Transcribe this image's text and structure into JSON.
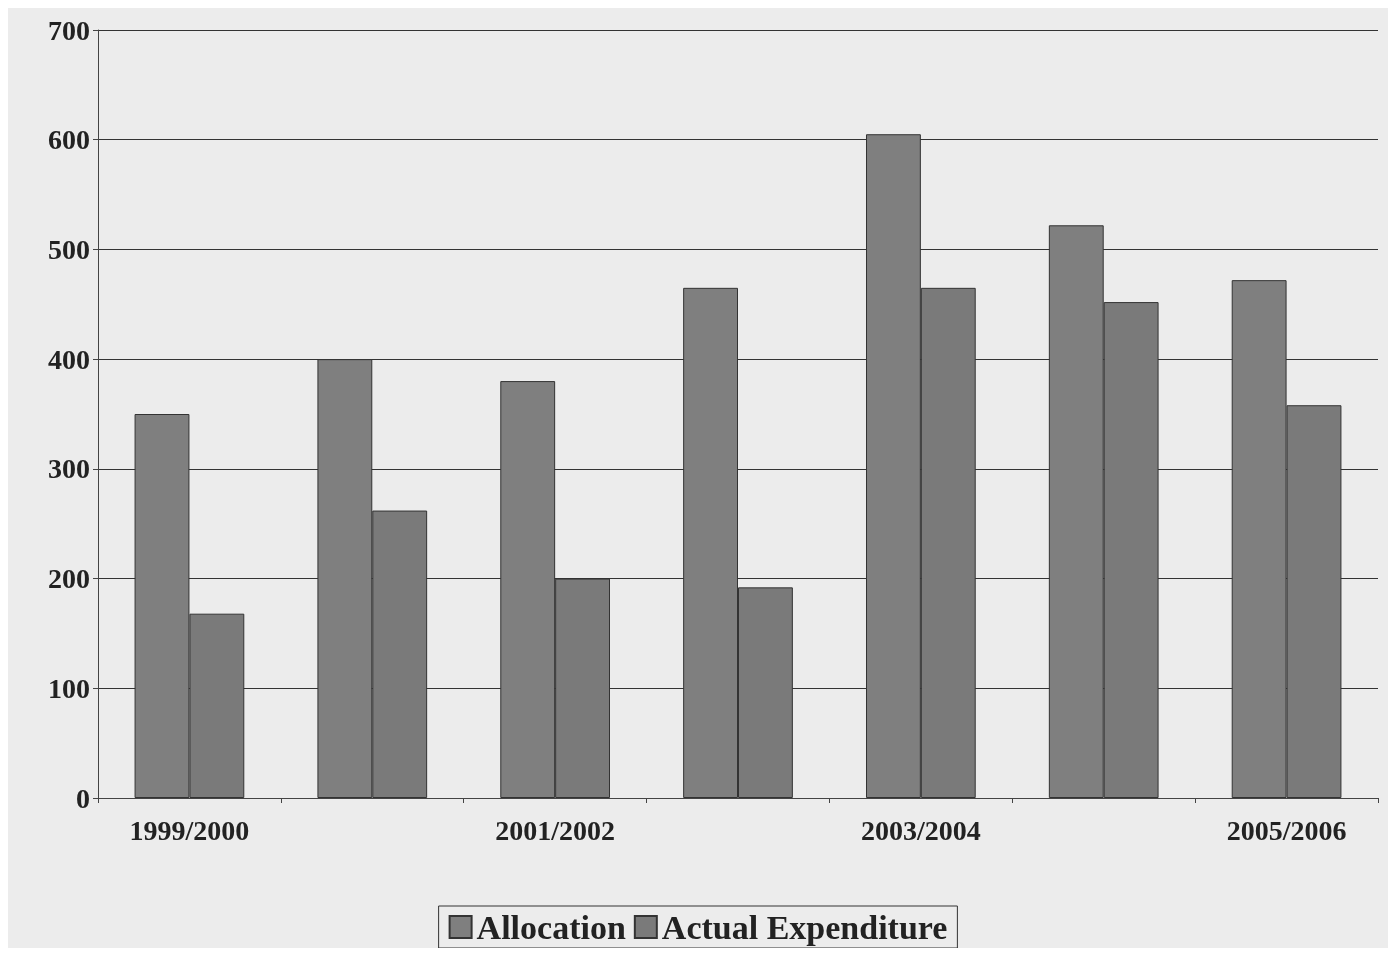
{
  "chart_data": {
    "type": "bar",
    "categories": [
      "1999/2000",
      null,
      "2001/2002",
      null,
      "2003/2004",
      null,
      "2005/2006"
    ],
    "series": [
      {
        "name": "Allocation",
        "color": "#7f7f7f",
        "values": [
          350,
          400,
          380,
          465,
          605,
          522,
          472
        ]
      },
      {
        "name": "Actual Expenditure",
        "color": "#7a7a7a",
        "values": [
          168,
          262,
          200,
          192,
          465,
          452,
          358
        ]
      }
    ],
    "ylim": [
      0,
      700
    ],
    "yticks": [
      0,
      100,
      200,
      300,
      400,
      500,
      600,
      700
    ],
    "grid": "y",
    "legend": "bottom"
  }
}
